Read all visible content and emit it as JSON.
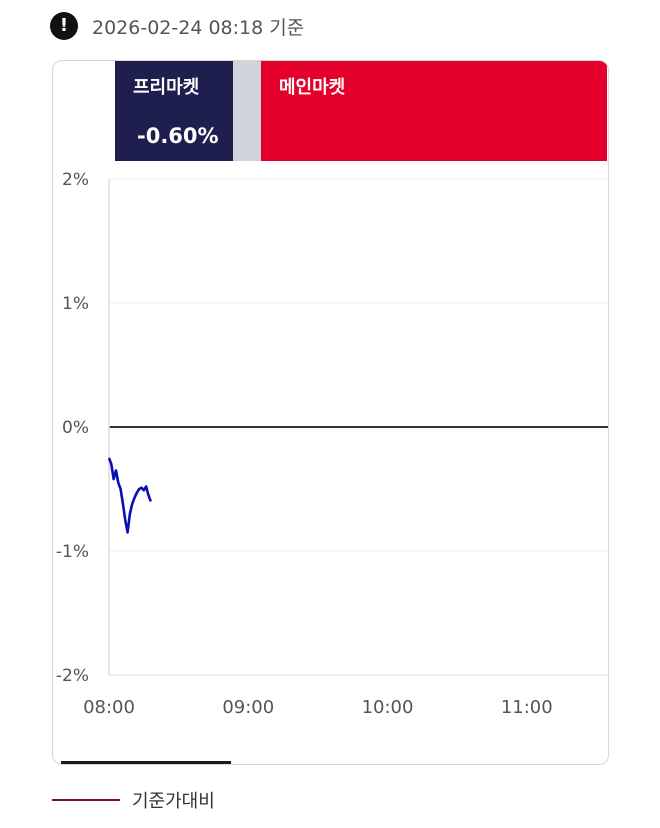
{
  "header": {
    "alert_icon": "exclamation-circle-icon",
    "alert_glyph": "!",
    "timestamp": "2026-02-24 08:18 기준"
  },
  "market_sessions": [
    {
      "label": "프리마켓",
      "value": "-0.60%",
      "color": "#1e1e4f"
    },
    {
      "label": "",
      "value": "",
      "color": "#d0d3dc"
    },
    {
      "label": "메인마켓",
      "value": "",
      "color": "#e4002b"
    }
  ],
  "legend": {
    "label": "기준가대비",
    "color": "#7a1133"
  },
  "chart_data": {
    "type": "line",
    "x_ticks": [
      "08:00",
      "09:00",
      "10:00",
      "11:00"
    ],
    "y_ticks": [
      "2%",
      "1%",
      "0%",
      "-1%",
      "-2%"
    ],
    "ylim": [
      -2,
      2
    ],
    "xlim_minutes": [
      0,
      215
    ],
    "series": [
      {
        "name": "기준가대비",
        "color": "#0a0fb4",
        "x": [
          0,
          1,
          2,
          3,
          4,
          5,
          6,
          7,
          8,
          9,
          10,
          11,
          12,
          13,
          14,
          15,
          16,
          17,
          18
        ],
        "y": [
          -0.25,
          -0.3,
          -0.42,
          -0.35,
          -0.45,
          -0.5,
          -0.62,
          -0.75,
          -0.85,
          -0.7,
          -0.62,
          -0.57,
          -0.53,
          -0.5,
          -0.49,
          -0.51,
          -0.48,
          -0.55,
          -0.6
        ]
      }
    ],
    "zero_line": true,
    "grid": true
  }
}
